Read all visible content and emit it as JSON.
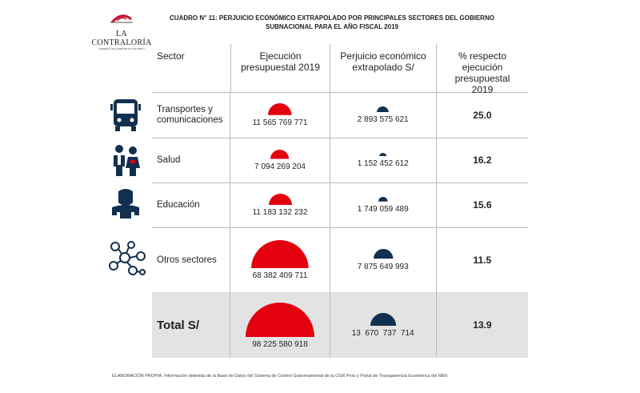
{
  "logo": {
    "name": "LA CONTRALORÍA",
    "subtitle": "GENERAL DE LA REPÚBLICA DEL PERÚ"
  },
  "title_line1": "CUADRO N° 11: PERJUICIO ECONÓMICO EXTRAPOLADO POR PRINCIPALES SECTORES DEL GOBIERNO",
  "title_line2": "SUBNACIONAL PARA EL AÑO FISCAL 2019",
  "headers": [
    "Sector",
    "Ejecución presupuestal 2019",
    "Perjuicio económico extrapolado S/",
    "% respecto ejecución presupuestal 2019"
  ],
  "colors": {
    "ejecucion": "#e3000f",
    "perjuicio": "#12304f",
    "total_bg": "#e3e3e3"
  },
  "rows": [
    {
      "sector": "Transportes y comunicaciones",
      "icon": "bus-icon",
      "ejecucion": "11 565 769 771",
      "ejecucion_value": 11565769771,
      "perjuicio": "2 893 575 621",
      "perjuicio_value": 2893575621,
      "pct": "25.0"
    },
    {
      "sector": "Salud",
      "icon": "health-people-icon",
      "ejecucion": "7 094 269 204",
      "ejecucion_value": 7094269204,
      "perjuicio": "1 152 452 612",
      "perjuicio_value": 1152452612,
      "pct": "16.2"
    },
    {
      "sector": "Educación",
      "icon": "teacher-icon",
      "ejecucion": "11 183 132 232",
      "ejecucion_value": 11183132232,
      "perjuicio": "1 749 059 489",
      "perjuicio_value": 1749059489,
      "pct": "15.6"
    },
    {
      "sector": "Otros sectores",
      "icon": "network-icon",
      "ejecucion": "68 382 409 711",
      "ejecucion_value": 68382409711,
      "perjuicio": "7 875 649 993",
      "perjuicio_value": 7875649993,
      "pct": "11.5"
    },
    {
      "sector": "Total S/",
      "ejecucion": "98 225 580 918",
      "ejecucion_value": 98225580918,
      "perjuicio": "13  670  737  714",
      "perjuicio_value": 13670737714,
      "pct": "13.9"
    }
  ],
  "footnote": "ELABORACIÓN PROPIA. Información obtenida de la Base de Datos del Sistema de Control Gubernamental de la CGR Perú y Portal de Transparencia Económica del MEF."
}
